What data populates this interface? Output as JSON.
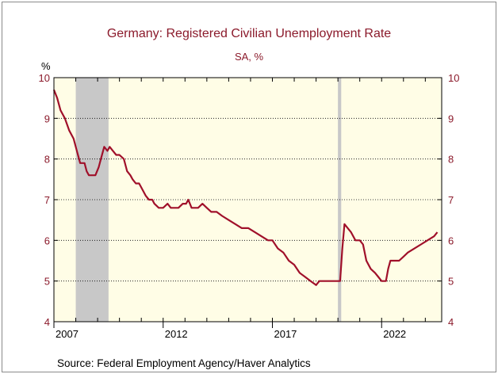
{
  "chart_data": {
    "type": "line",
    "title": "Germany: Registered Civilian Unemployment Rate",
    "subtitle": "SA, %",
    "ylabel": "%",
    "source": "Source:  Federal Employment Agency/Haver Analytics",
    "ylim": [
      4,
      10
    ],
    "xlim": [
      2007.0,
      2024.75
    ],
    "yticks": [
      "4",
      "5",
      "6",
      "7",
      "8",
      "9",
      "10"
    ],
    "xticks": [
      "2007",
      "2012",
      "2017",
      "2022"
    ],
    "grid": true,
    "legend": "none",
    "recessions": [
      [
        2008.0,
        2009.5
      ],
      [
        2020.0,
        2020.15
      ]
    ],
    "series": [
      {
        "color": "#a0102a",
        "x": [
          2007.0,
          2007.15,
          2007.3,
          2007.5,
          2007.7,
          2007.9,
          2008.05,
          2008.2,
          2008.4,
          2008.5,
          2008.6,
          2008.75,
          2008.9,
          2009.05,
          2009.15,
          2009.3,
          2009.45,
          2009.55,
          2009.7,
          2009.85,
          2010.0,
          2010.2,
          2010.35,
          2010.5,
          2010.6,
          2010.75,
          2010.9,
          2011.0,
          2011.2,
          2011.35,
          2011.5,
          2011.6,
          2011.8,
          2012.0,
          2012.2,
          2012.35,
          2012.5,
          2012.7,
          2012.9,
          2013.05,
          2013.15,
          2013.3,
          2013.45,
          2013.6,
          2013.8,
          2014.0,
          2014.2,
          2014.45,
          2014.7,
          2015.0,
          2015.3,
          2015.6,
          2015.9,
          2016.2,
          2016.5,
          2016.8,
          2017.0,
          2017.25,
          2017.5,
          2017.75,
          2018.0,
          2018.25,
          2018.5,
          2018.75,
          2019.0,
          2019.15,
          2019.3,
          2019.6,
          2019.9,
          2020.1,
          2020.2,
          2020.3,
          2020.45,
          2020.6,
          2020.8,
          2021.0,
          2021.15,
          2021.3,
          2021.5,
          2021.7,
          2021.85,
          2022.0,
          2022.2,
          2022.3,
          2022.4,
          2022.6,
          2022.8,
          2023.0,
          2023.2,
          2023.5,
          2023.8,
          2024.1,
          2024.4,
          2024.55
        ],
        "values": [
          9.7,
          9.5,
          9.2,
          9.0,
          8.7,
          8.5,
          8.2,
          7.9,
          7.9,
          7.7,
          7.6,
          7.6,
          7.6,
          7.8,
          8.0,
          8.3,
          8.2,
          8.3,
          8.2,
          8.1,
          8.1,
          8.0,
          7.7,
          7.6,
          7.5,
          7.4,
          7.4,
          7.3,
          7.1,
          7.0,
          7.0,
          6.9,
          6.8,
          6.8,
          6.9,
          6.8,
          6.8,
          6.8,
          6.9,
          6.9,
          7.0,
          6.8,
          6.8,
          6.8,
          6.9,
          6.8,
          6.7,
          6.7,
          6.6,
          6.5,
          6.4,
          6.3,
          6.3,
          6.2,
          6.1,
          6.0,
          6.0,
          5.8,
          5.7,
          5.5,
          5.4,
          5.2,
          5.1,
          5.0,
          4.9,
          5.0,
          5.0,
          5.0,
          5.0,
          5.0,
          5.8,
          6.4,
          6.3,
          6.2,
          6.0,
          6.0,
          5.9,
          5.5,
          5.3,
          5.2,
          5.1,
          5.0,
          5.0,
          5.3,
          5.5,
          5.5,
          5.5,
          5.6,
          5.7,
          5.8,
          5.9,
          6.0,
          6.1,
          6.2
        ]
      }
    ]
  }
}
